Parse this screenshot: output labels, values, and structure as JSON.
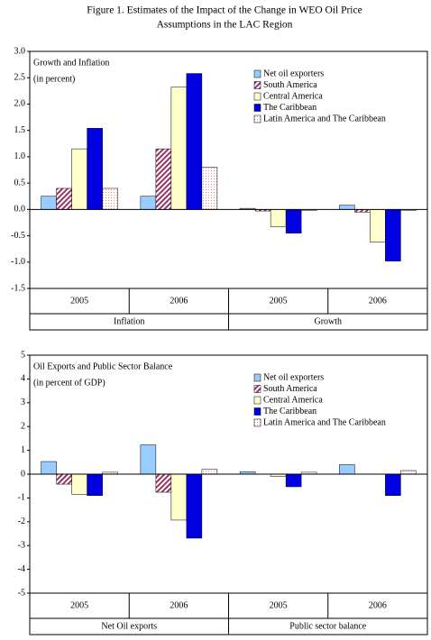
{
  "title": [
    "Figure 1. Estimates of the Impact of the Change in WEO Oil Price",
    "Assumptions in the LAC Region"
  ],
  "chart_data": [
    {
      "type": "bar",
      "title": "Growth and Inflation",
      "subtitle": "(in percent)",
      "categories": [
        "2005",
        "2006",
        "2005",
        "2006"
      ],
      "category_groups": [
        "Inflation",
        "Growth"
      ],
      "ylim": [
        -1.5,
        3
      ],
      "yticks": [
        {
          "value": 3,
          "label": "3.0"
        },
        {
          "value": 2.5,
          "label": "2.5"
        },
        {
          "value": 2,
          "label": "2.0"
        },
        {
          "value": 1.5,
          "label": "1.5"
        },
        {
          "value": 1,
          "label": "1.0"
        },
        {
          "value": 0.5,
          "label": "0.5"
        },
        {
          "value": 0,
          "label": "0.0"
        },
        {
          "value": -0.5,
          "label": "-0.5"
        },
        {
          "value": -1,
          "label": "-1.0"
        },
        {
          "value": -1.5,
          "label": "-1.5"
        }
      ],
      "legend": "upper right",
      "series": [
        {
          "name": "Net oil exporters",
          "color": "#99ccff",
          "pattern": "solid",
          "values": [
            0.25,
            0.25,
            0.02,
            0.08
          ]
        },
        {
          "name": "South America",
          "color": "#993366",
          "pattern": "diagonal",
          "values": [
            0.4,
            1.15,
            -0.03,
            -0.05
          ]
        },
        {
          "name": "Central America",
          "color": "#ffffcc",
          "pattern": "solid",
          "values": [
            1.15,
            2.32,
            -0.33,
            -0.62
          ]
        },
        {
          "name": "The Caribbean",
          "color": "#0000e0",
          "pattern": "solid",
          "values": [
            1.54,
            2.58,
            -0.45,
            -0.98
          ]
        },
        {
          "name": "Latin America and The Caribbean",
          "color": "#ff8080",
          "pattern": "dots",
          "values": [
            0.4,
            0.8,
            -0.02,
            -0.02
          ]
        }
      ]
    },
    {
      "type": "bar",
      "title": "Oil Exports and Public Sector Balance",
      "subtitle": "(in percent of GDP)",
      "categories": [
        "2005",
        "2006",
        "2005",
        "2006"
      ],
      "category_groups": [
        "Net Oil exports",
        "Public sector balance"
      ],
      "ylim": [
        -5,
        5
      ],
      "yticks": [
        5,
        4,
        3,
        2,
        1,
        0,
        -1,
        -2,
        -3,
        -4,
        -5
      ],
      "legend": "upper right",
      "series": [
        {
          "name": "Net oil exporters",
          "color": "#99ccff",
          "pattern": "solid",
          "values": [
            0.53,
            1.23,
            0.1,
            0.4
          ]
        },
        {
          "name": "South America",
          "color": "#993366",
          "pattern": "diagonal",
          "values": [
            -0.42,
            -0.76,
            0,
            0
          ]
        },
        {
          "name": "Central America",
          "color": "#ffffcc",
          "pattern": "solid",
          "values": [
            -0.85,
            -1.93,
            -0.1,
            0
          ]
        },
        {
          "name": "The Caribbean",
          "color": "#0000e0",
          "pattern": "solid",
          "values": [
            -0.9,
            -2.69,
            -0.53,
            -0.9
          ]
        },
        {
          "name": "Latin America and The Caribbean",
          "color": "#ff8080",
          "pattern": "dots",
          "values": [
            0.08,
            0.2,
            0.08,
            0.15
          ]
        }
      ]
    }
  ]
}
